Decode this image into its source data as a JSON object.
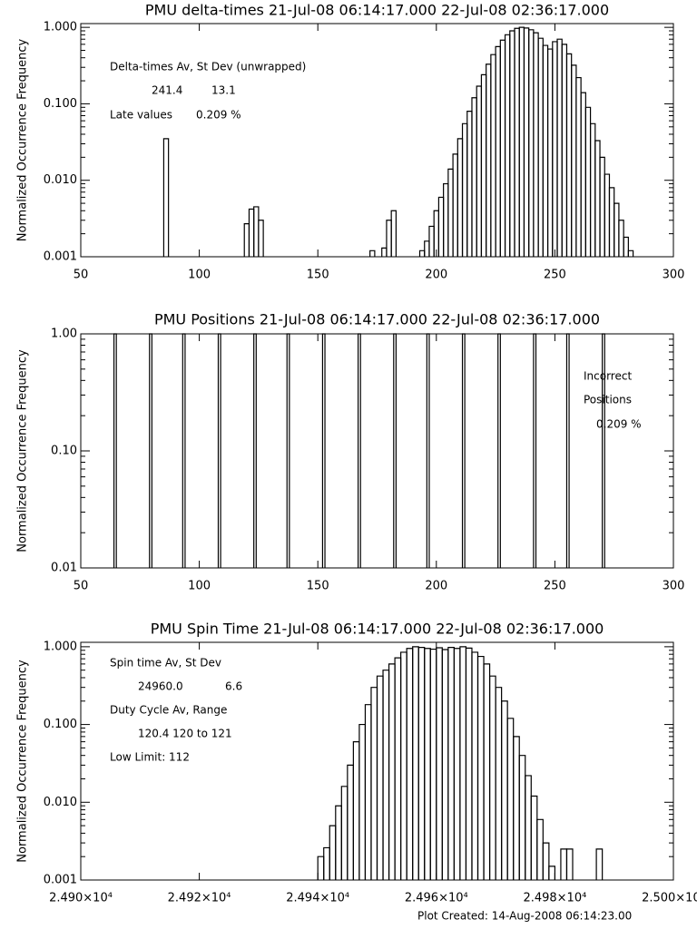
{
  "chart_data": [
    {
      "type": "histogram",
      "title": "PMU delta-times 21-Jul-08 06:14:17.000 22-Jul-08 02:36:17.000",
      "y_label": "Normalized Occurrence Frequency",
      "log_y": true,
      "color": "#000000",
      "xlim": [
        50,
        300
      ],
      "xticks": [
        50,
        100,
        150,
        200,
        250,
        300
      ],
      "ylim": [
        0.001,
        1.12
      ],
      "yticks": [
        {
          "value": 0.001,
          "label": "0.001"
        },
        {
          "value": 0.01,
          "label": "0.010"
        },
        {
          "value": 0.1,
          "label": "0.100"
        },
        {
          "value": 1,
          "label": "1.000"
        }
      ],
      "annotations": [
        "Delta-times Av, St Dev (unwrapped)",
        "241.4",
        "13.1",
        "Late values",
        "0.209 %"
      ],
      "bins": [
        85,
        87,
        119,
        121,
        123,
        125,
        127,
        172,
        174,
        177,
        179,
        181,
        183,
        193,
        195,
        197,
        199,
        201,
        203,
        205,
        207,
        209,
        211,
        213,
        215,
        217,
        219,
        221,
        223,
        225,
        227,
        229,
        231,
        233,
        235,
        237,
        239,
        241,
        243,
        245,
        247,
        249,
        251,
        253,
        255,
        257,
        259,
        261,
        263,
        265,
        267,
        269,
        271,
        273,
        275,
        277,
        279,
        281,
        283
      ],
      "values": [
        0.035,
        null,
        0.0027,
        0.0042,
        0.0045,
        0.003,
        null,
        0.0012,
        null,
        0.0013,
        0.003,
        0.004,
        null,
        0.0012,
        0.0016,
        0.0025,
        0.004,
        0.006,
        0.009,
        0.014,
        0.022,
        0.035,
        0.055,
        0.08,
        0.12,
        0.17,
        0.24,
        0.33,
        0.44,
        0.56,
        0.68,
        0.8,
        0.9,
        0.97,
        1.0,
        0.98,
        0.93,
        0.85,
        0.72,
        0.58,
        0.52,
        0.65,
        0.7,
        0.6,
        0.45,
        0.32,
        0.22,
        0.14,
        0.09,
        0.055,
        0.033,
        0.02,
        0.012,
        0.008,
        0.005,
        0.003,
        0.0018,
        0.0012
      ]
    },
    {
      "type": "histogram",
      "title": "PMU Positions 21-Jul-08 06:14:17.000 22-Jul-08 02:36:17.000",
      "y_label": "Normalized Occurrence Frequency",
      "log_y": true,
      "color": "#000000",
      "xlim": [
        50,
        300
      ],
      "xticks": [
        50,
        100,
        150,
        200,
        250,
        300
      ],
      "ylim": [
        0.01,
        1.0
      ],
      "yticks": [
        {
          "value": 0.01,
          "label": "0.01"
        },
        {
          "value": 0.1,
          "label": "0.10"
        },
        {
          "value": 1,
          "label": "1.00"
        }
      ],
      "annotations": [
        "Incorrect",
        "Positions",
        "0.209 %"
      ],
      "bins": [
        64,
        65,
        79,
        80,
        93,
        94,
        108,
        109,
        123,
        124,
        137,
        138,
        152,
        153,
        167,
        168,
        182,
        183,
        196,
        197,
        211,
        212,
        226,
        227,
        241,
        242,
        255,
        256,
        270,
        271
      ],
      "values": [
        1,
        null,
        1,
        null,
        1,
        null,
        1,
        null,
        1,
        null,
        1,
        null,
        1,
        null,
        1,
        null,
        1,
        null,
        1,
        null,
        1,
        null,
        1,
        null,
        1,
        null,
        1,
        null,
        1
      ]
    },
    {
      "type": "histogram",
      "title": "PMU Spin Time 21-Jul-08 06:14:17.000 22-Jul-08 02:36:17.000",
      "y_label": "Normalized Occurrence Frequency",
      "log_y": true,
      "color": "#000000",
      "xlim": [
        24900,
        25000
      ],
      "xticks": [
        {
          "value": 24900,
          "label": "2.490×10⁴"
        },
        {
          "value": 24920,
          "label": "2.492×10⁴"
        },
        {
          "value": 24940,
          "label": "2.494×10⁴"
        },
        {
          "value": 24960,
          "label": "2.496×10⁴"
        },
        {
          "value": 24980,
          "label": "2.498×10⁴"
        },
        {
          "value": 25000,
          "label": "2.500×10⁴"
        }
      ],
      "ylim": [
        0.001,
        1.14
      ],
      "yticks": [
        {
          "value": 0.001,
          "label": "0.001"
        },
        {
          "value": 0.01,
          "label": "0.010"
        },
        {
          "value": 0.1,
          "label": "0.100"
        },
        {
          "value": 1,
          "label": "1.000"
        }
      ],
      "annotations": [
        "Spin time Av, St Dev",
        "24960.0",
        "6.6",
        "Duty Cycle Av, Range",
        "120.4 120 to 121",
        "Low Limit: 112"
      ],
      "bins": [
        24940,
        24941,
        24942,
        24943,
        24944,
        24945,
        24946,
        24947,
        24948,
        24949,
        24950,
        24951,
        24952,
        24953,
        24954,
        24955,
        24956,
        24957,
        24958,
        24959,
        24960,
        24961,
        24962,
        24963,
        24964,
        24965,
        24966,
        24967,
        24968,
        24969,
        24970,
        24971,
        24972,
        24973,
        24974,
        24975,
        24976,
        24977,
        24978,
        24979,
        24980,
        24981,
        24982,
        24983,
        24984,
        24985,
        24986,
        24987,
        24988
      ],
      "values": [
        0.002,
        0.0026,
        0.005,
        0.009,
        0.016,
        0.03,
        0.06,
        0.1,
        0.18,
        0.3,
        0.42,
        0.5,
        0.6,
        0.72,
        0.85,
        0.95,
        1.0,
        0.98,
        0.95,
        0.93,
        0.97,
        0.92,
        0.98,
        0.95,
        1.0,
        0.96,
        0.85,
        0.75,
        0.6,
        0.42,
        0.3,
        0.2,
        0.12,
        0.07,
        0.04,
        0.022,
        0.012,
        0.006,
        0.003,
        0.0015,
        null,
        0.0025,
        0.0025,
        null,
        null,
        null,
        null,
        0.0025
      ]
    }
  ],
  "footer": "Plot Created: 14-Aug-2008 06:14:23.00"
}
